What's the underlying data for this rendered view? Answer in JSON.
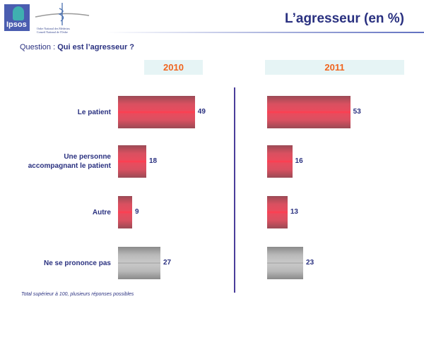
{
  "logo": {
    "brand": "Ipsos",
    "org_line1": "Ordre National des Médecins",
    "org_line2": "Conseil National de l'Ordre"
  },
  "header": {
    "title": "L’agresseur (en %)"
  },
  "question": {
    "prefix": "Question : ",
    "text": "Qui est l’agresseur ?"
  },
  "footnote": "Total supérieur à 100, plusieurs réponses possibles",
  "colors": {
    "bar": "#e84c5e",
    "neutral": "#b9b9b9",
    "year": "#f0641e",
    "text": "#2a3180"
  },
  "chart_data": {
    "type": "bar",
    "orientation": "horizontal",
    "categories": [
      "Le patient",
      "Une personne accompagnant le patient",
      "Autre",
      "Ne se prononce pas"
    ],
    "series": [
      {
        "name": "2010",
        "values": [
          49,
          18,
          9,
          27
        ]
      },
      {
        "name": "2011",
        "values": [
          53,
          16,
          13,
          23
        ]
      }
    ],
    "unit": "%"
  }
}
